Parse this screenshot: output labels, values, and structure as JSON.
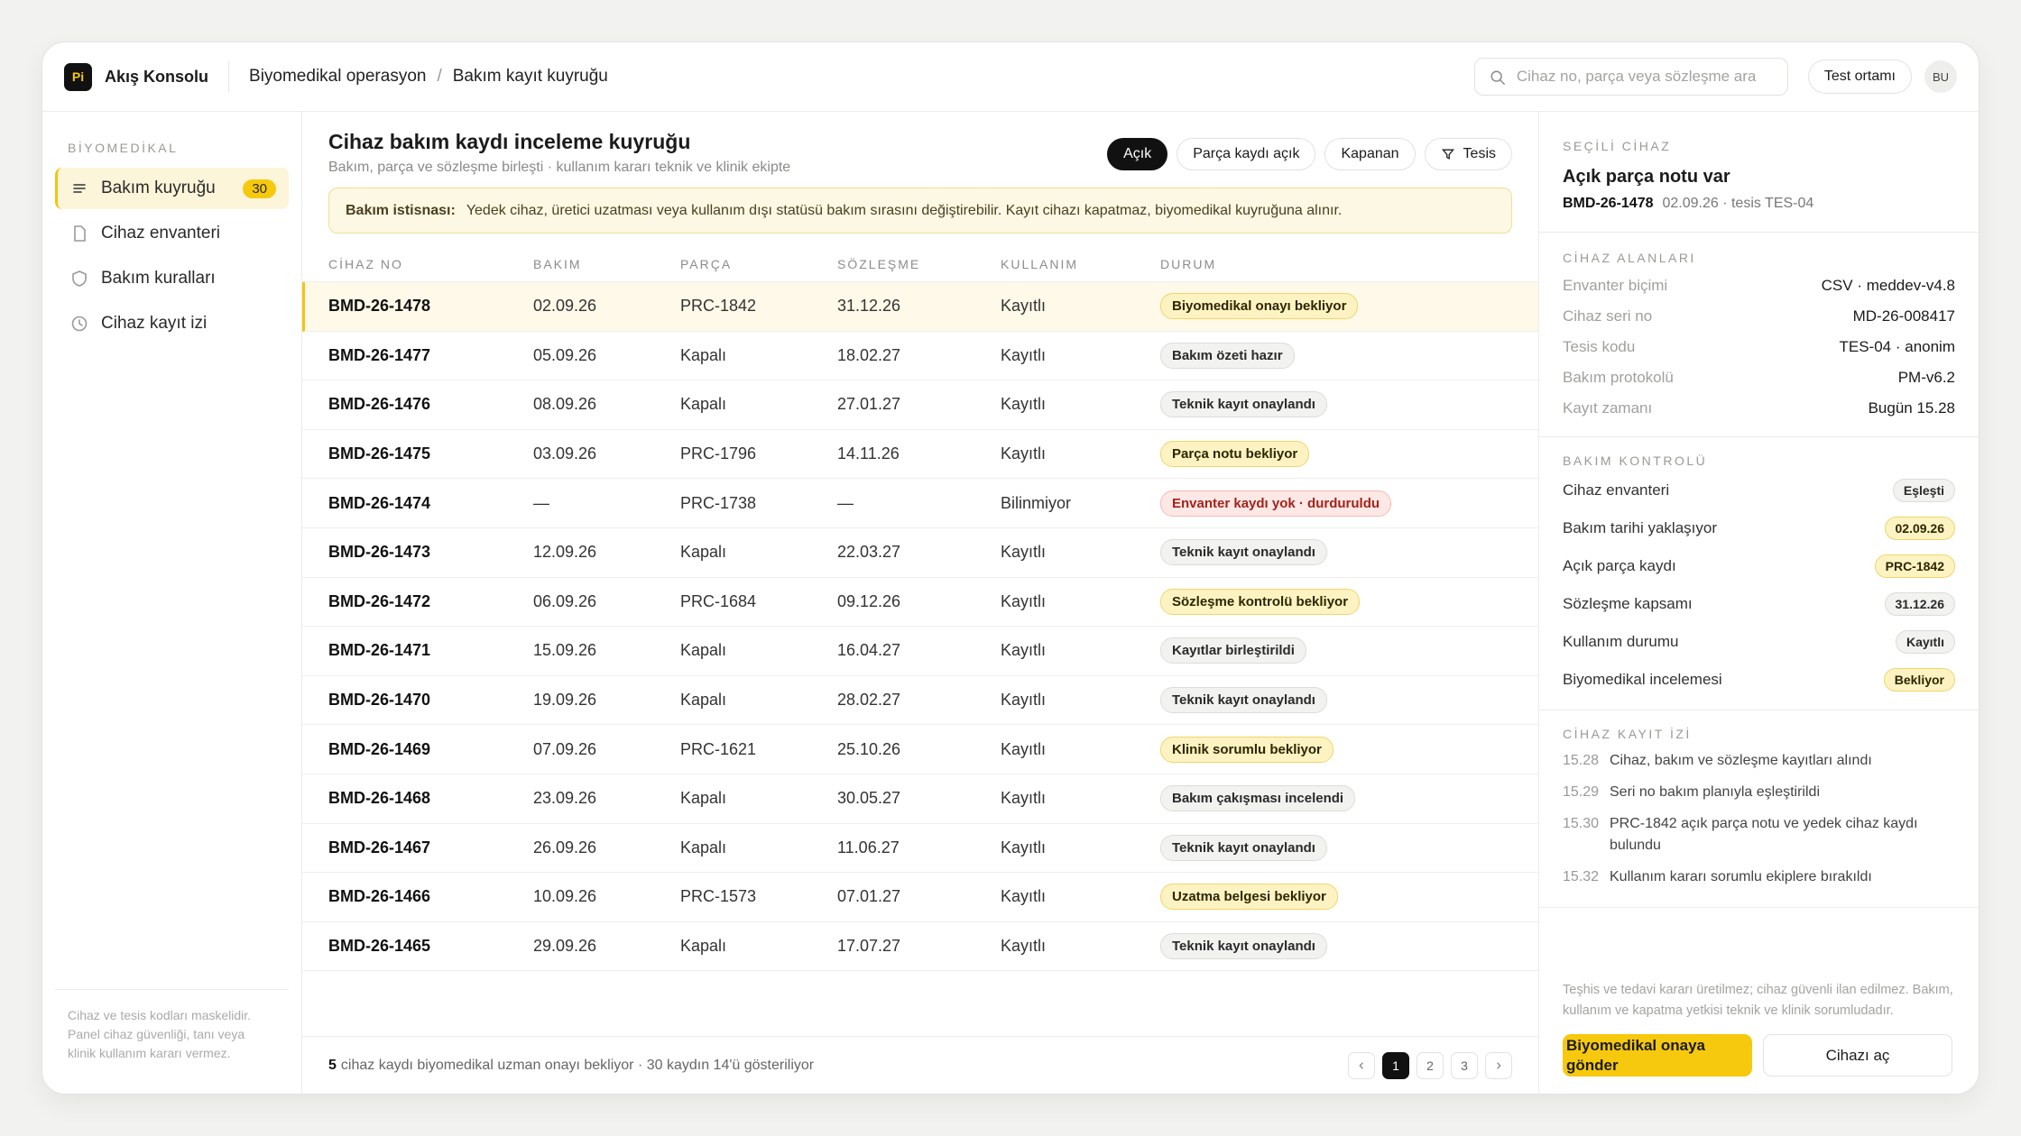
{
  "header": {
    "logo": "Pi",
    "app_name": "Akış Konsolu",
    "breadcrumb": [
      "Biyomedikal operasyon",
      "Bakım kayıt kuyruğu"
    ],
    "breadcrumb_separator": "/",
    "search_placeholder": "Cihaz no, parça veya sözleşme ara",
    "environment": "Test ortamı",
    "avatar": "BU"
  },
  "sidebar": {
    "section": "BİYOMEDİKAL",
    "active_item": 0,
    "items": [
      {
        "label": "Bakım kuyruğu",
        "badge": 30
      },
      {
        "label": "Cihaz envanteri"
      },
      {
        "label": "Bakım kuralları"
      },
      {
        "label": "Cihaz kayıt izi"
      }
    ],
    "footer": "Cihaz ve tesis kodları maskelidir. Panel cihaz güvenliği, tanı veya klinik kullanım kararı vermez."
  },
  "main": {
    "title": "Cihaz bakım kaydı inceleme kuyruğu",
    "subtitle": "Bakım, parça ve sözleşme birleşti · kullanım kararı teknik ve klinik ekipte",
    "filters": [
      "Açık",
      "Parça kaydı açık",
      "Kapanan",
      "Tesis"
    ],
    "active_filter": 0,
    "notice": {
      "label": "Bakım istisnası:",
      "text": "Yedek cihaz, üretici uzatması veya kullanım dışı statüsü bakım sırasını değiştirebilir. Kayıt cihazı kapatmaz, biyomedikal kuyruğuna alınır."
    },
    "table": {
      "columns": [
        "CİHAZ NO",
        "BAKIM",
        "PARÇA",
        "SÖZLEŞME",
        "KULLANIM",
        "DURUM"
      ],
      "selected_row": 0,
      "rows": [
        [
          "BMD-26-1478",
          "02.09.26",
          "PRC-1842",
          "31.12.26",
          "Kayıtlı",
          "Biyomedikal onayı bekliyor"
        ],
        [
          "BMD-26-1477",
          "05.09.26",
          "Kapalı",
          "18.02.27",
          "Kayıtlı",
          "Bakım özeti hazır"
        ],
        [
          "BMD-26-1476",
          "08.09.26",
          "Kapalı",
          "27.01.27",
          "Kayıtlı",
          "Teknik kayıt onaylandı"
        ],
        [
          "BMD-26-1475",
          "03.09.26",
          "PRC-1796",
          "14.11.26",
          "Kayıtlı",
          "Parça notu bekliyor"
        ],
        [
          "BMD-26-1474",
          "—",
          "PRC-1738",
          "—",
          "Bilinmiyor",
          "Envanter kaydı yok · durduruldu"
        ],
        [
          "BMD-26-1473",
          "12.09.26",
          "Kapalı",
          "22.03.27",
          "Kayıtlı",
          "Teknik kayıt onaylandı"
        ],
        [
          "BMD-26-1472",
          "06.09.26",
          "PRC-1684",
          "09.12.26",
          "Kayıtlı",
          "Sözleşme kontrolü bekliyor"
        ],
        [
          "BMD-26-1471",
          "15.09.26",
          "Kapalı",
          "16.04.27",
          "Kayıtlı",
          "Kayıtlar birleştirildi"
        ],
        [
          "BMD-26-1470",
          "19.09.26",
          "Kapalı",
          "28.02.27",
          "Kayıtlı",
          "Teknik kayıt onaylandı"
        ],
        [
          "BMD-26-1469",
          "07.09.26",
          "PRC-1621",
          "25.10.26",
          "Kayıtlı",
          "Klinik sorumlu bekliyor"
        ],
        [
          "BMD-26-1468",
          "23.09.26",
          "Kapalı",
          "30.05.27",
          "Kayıtlı",
          "Bakım çakışması incelendi"
        ],
        [
          "BMD-26-1467",
          "26.09.26",
          "Kapalı",
          "11.06.27",
          "Kayıtlı",
          "Teknik kayıt onaylandı"
        ],
        [
          "BMD-26-1466",
          "10.09.26",
          "PRC-1573",
          "07.01.27",
          "Kayıtlı",
          "Uzatma belgesi bekliyor"
        ],
        [
          "BMD-26-1465",
          "29.09.26",
          "Kapalı",
          "17.07.27",
          "Kayıtlı",
          "Teknik kayıt onaylandı"
        ]
      ],
      "status_tones": [
        "warning",
        "neutral",
        "neutral",
        "warning",
        "danger",
        "neutral",
        "warning",
        "neutral",
        "neutral",
        "warning",
        "neutral",
        "neutral",
        "warning",
        "neutral"
      ]
    },
    "footer": {
      "count": 5,
      "text": "cihaz kaydı biyomedikal uzman onayı bekliyor · 30 kaydın 14'ü gösteriliyor",
      "pages": [
        1,
        2,
        3
      ],
      "current_page": 0
    }
  },
  "detail": {
    "section": "SEÇİLİ CİHAZ",
    "title": "Açık parça notu var",
    "id": "BMD-26-1478",
    "meta": "02.09.26 · tesis TES-04",
    "fields_section": "CİHAZ ALANLARI",
    "fields": [
      [
        "Envanter biçimi",
        "CSV · meddev-v4.8"
      ],
      [
        "Cihaz seri no",
        "MD-26-008417"
      ],
      [
        "Tesis kodu",
        "TES-04 · anonim"
      ],
      [
        "Bakım protokolü",
        "PM-v6.2"
      ],
      [
        "Kayıt zamanı",
        "Bugün 15.28"
      ]
    ],
    "control_section": "BAKIM KONTROLÜ",
    "controls": [
      {
        "label": "Cihaz envanteri",
        "value": "Eşleşti",
        "tone": "neutral"
      },
      {
        "label": "Bakım tarihi yaklaşıyor",
        "value": "02.09.26",
        "tone": "warning"
      },
      {
        "label": "Açık parça kaydı",
        "value": "PRC-1842",
        "tone": "warning"
      },
      {
        "label": "Sözleşme kapsamı",
        "value": "31.12.26",
        "tone": "neutral"
      },
      {
        "label": "Kullanım durumu",
        "value": "Kayıtlı",
        "tone": "neutral"
      },
      {
        "label": "Biyomedikal incelemesi",
        "value": "Bekliyor",
        "tone": "warning"
      }
    ],
    "log_section": "CİHAZ KAYIT İZİ",
    "log": [
      {
        "time": "15.28",
        "text": "Cihaz, bakım ve sözleşme kayıtları alındı"
      },
      {
        "time": "15.29",
        "text": "Seri no bakım planıyla eşleştirildi"
      },
      {
        "time": "15.30",
        "text": "PRC-1842 açık parça notu ve yedek cihaz kaydı bulundu"
      },
      {
        "time": "15.32",
        "text": "Kullanım kararı sorumlu ekiplere bırakıldı"
      }
    ],
    "disclaimer": "Teşhis ve tedavi kararı üretilmez; cihaz güvenli ilan edilmez. Bakım, kullanım ve kapatma yetkisi teknik ve klinik sorumludadır.",
    "primary_button": "Biyomedikal onaya gönder",
    "secondary_button": "Cihazı aç"
  }
}
